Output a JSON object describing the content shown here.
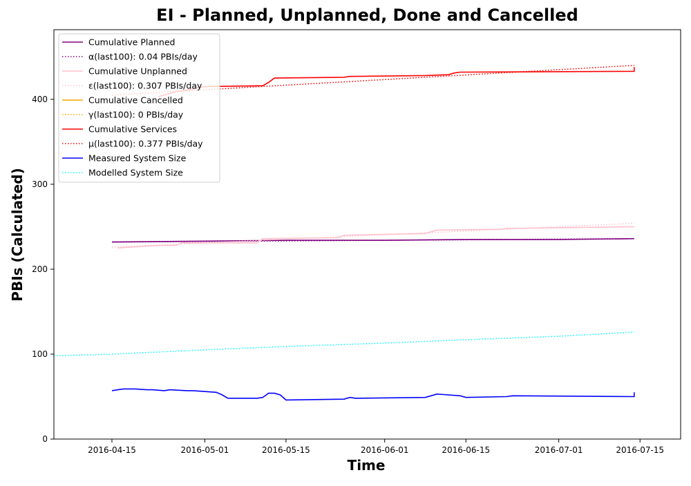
{
  "chart_data": {
    "type": "line",
    "title": "EI - Planned, Unplanned, Done  and Cancelled",
    "xlabel": "Time",
    "ylabel": "PBIs (Calculated)",
    "xlim": [
      "2016-04-05",
      "2016-07-22"
    ],
    "ylim": [
      0,
      482
    ],
    "xticks": [
      "2016-04-15",
      "2016-05-01",
      "2016-05-15",
      "2016-06-01",
      "2016-06-15",
      "2016-07-01",
      "2016-07-15"
    ],
    "yticks": [
      0,
      100,
      200,
      300,
      400
    ],
    "grid": false,
    "legend_position": "upper left",
    "series": [
      {
        "name": "Cumulative Planned",
        "color": "#800080",
        "style": "solid",
        "points": [
          [
            "2016-04-15",
            232
          ],
          [
            "2016-05-01",
            233
          ],
          [
            "2016-05-15",
            234
          ],
          [
            "2016-06-01",
            234
          ],
          [
            "2016-06-15",
            235
          ],
          [
            "2016-07-01",
            235
          ],
          [
            "2016-07-14",
            236
          ]
        ]
      },
      {
        "name": "α(last100): 0.04 PBIs/day",
        "color": "#800080",
        "style": "dotted",
        "points": [
          [
            "2016-04-15",
            232
          ],
          [
            "2016-07-14",
            236
          ]
        ]
      },
      {
        "name": "Cumulative Unplanned",
        "color": "#ffc0cb",
        "style": "solid",
        "points": [
          [
            "2016-04-16",
            225
          ],
          [
            "2016-04-23",
            228
          ],
          [
            "2016-04-26",
            228
          ],
          [
            "2016-04-27",
            231
          ],
          [
            "2016-05-10",
            231
          ],
          [
            "2016-05-11",
            236
          ],
          [
            "2016-05-24",
            237
          ],
          [
            "2016-05-25",
            240
          ],
          [
            "2016-06-08",
            242
          ],
          [
            "2016-06-10",
            246
          ],
          [
            "2016-06-21",
            247
          ],
          [
            "2016-06-22",
            248
          ],
          [
            "2016-07-14",
            250
          ]
        ]
      },
      {
        "name": "ε(last100): 0.307 PBIs/day",
        "color": "#ffc0cb",
        "style": "dotted",
        "points": [
          [
            "2016-04-15",
            226
          ],
          [
            "2016-07-14",
            254
          ]
        ]
      },
      {
        "name": "Cumulative Cancelled",
        "color": "#ffa500",
        "style": "solid",
        "points": []
      },
      {
        "name": "γ(last100): 0 PBIs/day",
        "color": "#ffa500",
        "style": "dotted",
        "points": []
      },
      {
        "name": "Cumulative Services",
        "color": "#ff0000",
        "style": "solid",
        "points": [
          [
            "2016-04-23",
            403
          ],
          [
            "2016-04-24",
            405
          ],
          [
            "2016-04-25",
            407
          ],
          [
            "2016-04-26",
            409
          ],
          [
            "2016-04-28",
            411
          ],
          [
            "2016-04-30",
            414
          ],
          [
            "2016-05-01",
            415
          ],
          [
            "2016-05-11",
            416
          ],
          [
            "2016-05-12",
            420
          ],
          [
            "2016-05-13",
            425
          ],
          [
            "2016-05-25",
            426
          ],
          [
            "2016-05-26",
            427
          ],
          [
            "2016-06-08",
            428
          ],
          [
            "2016-06-12",
            429
          ],
          [
            "2016-06-13",
            431
          ],
          [
            "2016-06-14",
            432
          ],
          [
            "2016-07-14",
            433
          ],
          [
            "2016-07-14",
            438
          ]
        ]
      },
      {
        "name": "μ(last100): 0.377 PBIs/day",
        "color": "#ff0000",
        "style": "dotted",
        "points": [
          [
            "2016-04-15",
            405
          ],
          [
            "2016-07-14",
            440
          ]
        ]
      },
      {
        "name": "Measured System Size",
        "color": "#0000ff",
        "style": "solid",
        "points": [
          [
            "2016-04-15",
            57
          ],
          [
            "2016-04-16",
            58
          ],
          [
            "2016-04-17",
            59
          ],
          [
            "2016-04-19",
            59
          ],
          [
            "2016-04-21",
            58
          ],
          [
            "2016-04-22",
            58
          ],
          [
            "2016-04-24",
            57
          ],
          [
            "2016-04-25",
            58
          ],
          [
            "2016-04-28",
            57
          ],
          [
            "2016-04-29",
            57
          ],
          [
            "2016-05-03",
            55
          ],
          [
            "2016-05-04",
            52
          ],
          [
            "2016-05-05",
            48
          ],
          [
            "2016-05-10",
            48
          ],
          [
            "2016-05-11",
            49
          ],
          [
            "2016-05-12",
            54
          ],
          [
            "2016-05-13",
            54
          ],
          [
            "2016-05-14",
            52
          ],
          [
            "2016-05-15",
            46
          ],
          [
            "2016-05-25",
            47
          ],
          [
            "2016-05-26",
            49
          ],
          [
            "2016-05-27",
            48
          ],
          [
            "2016-06-08",
            49
          ],
          [
            "2016-06-09",
            51
          ],
          [
            "2016-06-10",
            53
          ],
          [
            "2016-06-14",
            51
          ],
          [
            "2016-06-15",
            49
          ],
          [
            "2016-06-22",
            50
          ],
          [
            "2016-06-23",
            51
          ],
          [
            "2016-07-14",
            50
          ],
          [
            "2016-07-14",
            55
          ]
        ]
      },
      {
        "name": "Modelled System Size",
        "color": "#00ffff",
        "style": "dotted",
        "points": [
          [
            "2016-04-05",
            98
          ],
          [
            "2016-04-15",
            100
          ],
          [
            "2016-05-01",
            105
          ],
          [
            "2016-05-15",
            109
          ],
          [
            "2016-06-01",
            113
          ],
          [
            "2016-06-15",
            117
          ],
          [
            "2016-07-01",
            121
          ],
          [
            "2016-07-14",
            126
          ]
        ]
      }
    ]
  }
}
